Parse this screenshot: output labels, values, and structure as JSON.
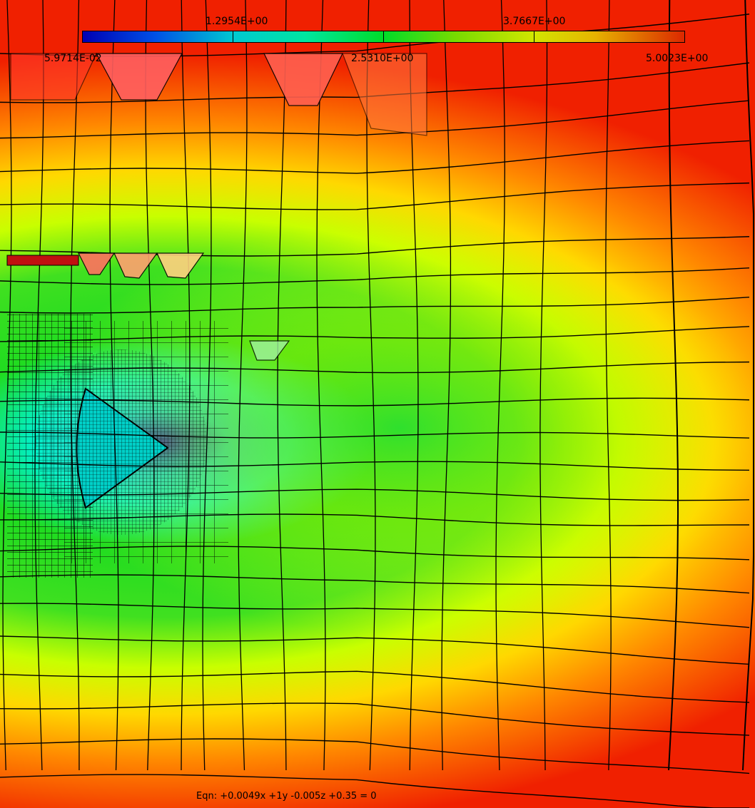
{
  "colorbar": {
    "top_labels": [
      "1.2954E+00",
      "3.7667E+00"
    ],
    "bottom_labels": [
      "5.9714E-02",
      "2.5310E+00",
      "5.0023E+00"
    ],
    "colors": [
      "#0000b4",
      "#00c8d2",
      "#00dc28",
      "#d2e600",
      "#dc2800"
    ]
  },
  "plane_equation": "Eqn:  +0.0049x +1y -0.005z +0.35 = 0",
  "field_colors": {
    "high": "#f02000",
    "upper_mid": "#ffa000",
    "mid": "#e6ff00",
    "low_mid": "#20dc20",
    "low": "#00f0e0",
    "min": "#1010c8"
  }
}
